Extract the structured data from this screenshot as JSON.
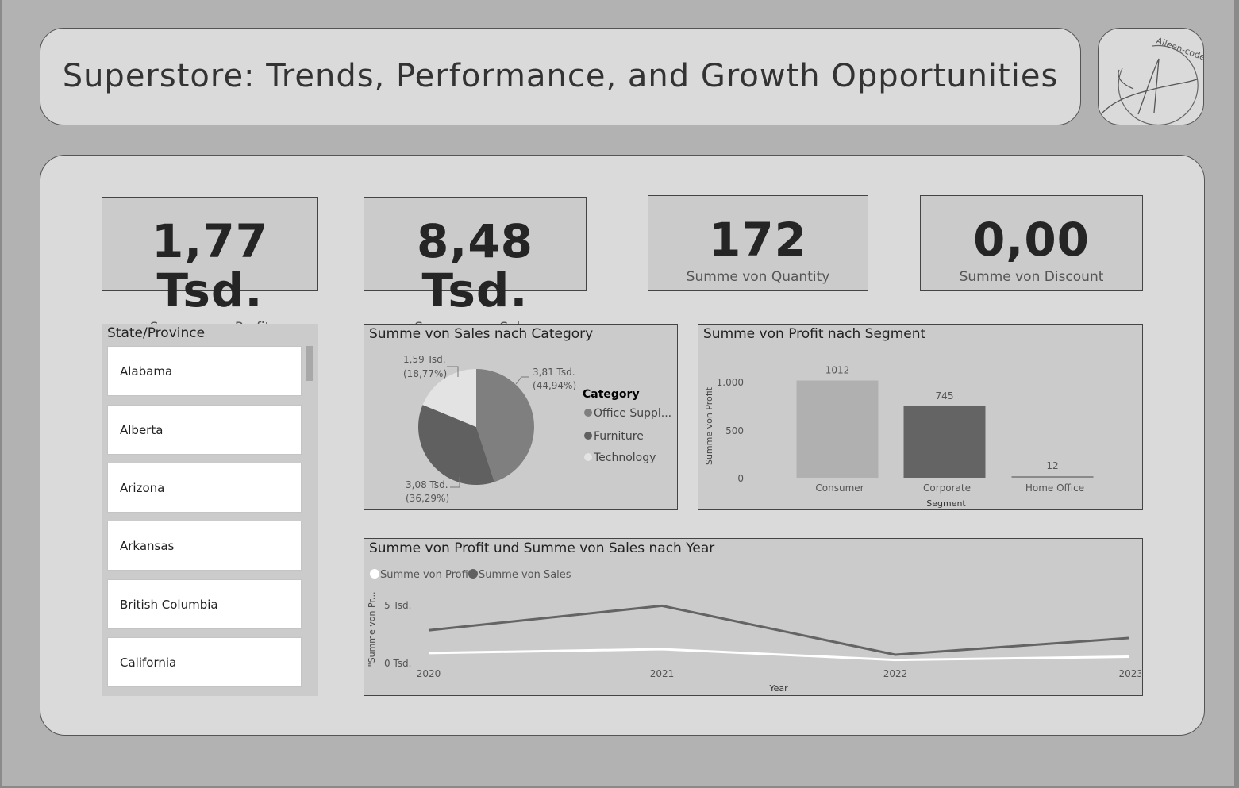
{
  "header": {
    "title": "Superstore: Trends, Performance, and Growth Opportunities",
    "logo_text": "Aileen-code"
  },
  "kpis": [
    {
      "value": "1,77 Tsd.",
      "label": "Summe von Profit"
    },
    {
      "value": "8,48 Tsd.",
      "label": "Summe von Sales"
    },
    {
      "value": "172",
      "label": "Summe von Quantity"
    },
    {
      "value": "0,00",
      "label": "Summe von Discount"
    }
  ],
  "slicer": {
    "title": "State/Province",
    "items": [
      "Alabama",
      "Alberta",
      "Arizona",
      "Arkansas",
      "British Columbia",
      "California"
    ]
  },
  "pie": {
    "title": "Summe von Sales nach Category",
    "legend_title": "Category",
    "legend": [
      {
        "label": "Office Suppl...",
        "color": "#7f7f7f"
      },
      {
        "label": "Furniture",
        "color": "#606060"
      },
      {
        "label": "Technology",
        "color": "#e3e3e3"
      }
    ],
    "labels": {
      "office": {
        "line1": "3,81 Tsd.",
        "line2": "(44,94%)"
      },
      "furniture": {
        "line1": "3,08 Tsd.",
        "line2": "(36,29%)"
      },
      "technology": {
        "line1": "1,59 Tsd.",
        "line2": "(18,77%)"
      }
    }
  },
  "bar": {
    "title": "Summe von Profit nach Segment",
    "ylabel": "Summe von Profit",
    "xlabel": "Segment",
    "yticks": [
      "1.000",
      "500",
      "0"
    ]
  },
  "line": {
    "title": "Summe von Profit und Summe von Sales nach Year",
    "legend": [
      {
        "label": "Summe von Profit",
        "color": "#ffffff"
      },
      {
        "label": "Summe von Sales",
        "color": "#606060"
      }
    ],
    "ylabel": "\"Summe von Pr...",
    "xlabel": "Year",
    "yticks": [
      "5 Tsd.",
      "0 Tsd."
    ]
  },
  "chart_data": [
    {
      "type": "pie",
      "title": "Summe von Sales nach Category",
      "legend_placement": "right",
      "categories": [
        "Office Supplies",
        "Furniture",
        "Technology"
      ],
      "values": [
        3810,
        3080,
        1590
      ],
      "percents": [
        44.94,
        36.29,
        18.77
      ],
      "colors": [
        "#7f7f7f",
        "#606060",
        "#e3e3e3"
      ]
    },
    {
      "type": "bar",
      "title": "Summe von Profit nach Segment",
      "xlabel": "Segment",
      "ylabel": "Summe von Profit",
      "categories": [
        "Consumer",
        "Corporate",
        "Home Office"
      ],
      "values": [
        1012,
        745,
        12
      ],
      "colors": [
        "#b0b0b0",
        "#646464",
        "#8a8a8a"
      ],
      "ylim": [
        0,
        1000
      ],
      "grid": false
    },
    {
      "type": "line",
      "title": "Summe von Profit und Summe von Sales nach Year",
      "xlabel": "Year",
      "ylabel": "\"Summe von Pr...",
      "x": [
        "2020",
        "2021",
        "2022",
        "2023"
      ],
      "series": [
        {
          "name": "Summe von Profit",
          "values": [
            650,
            1000,
            30,
            320
          ],
          "color": "#ffffff"
        },
        {
          "name": "Summe von Sales",
          "values": [
            2700,
            4900,
            500,
            2000
          ],
          "color": "#646464"
        }
      ],
      "ylim": [
        0,
        5000
      ],
      "legend_placement": "top-left",
      "grid": false
    }
  ]
}
